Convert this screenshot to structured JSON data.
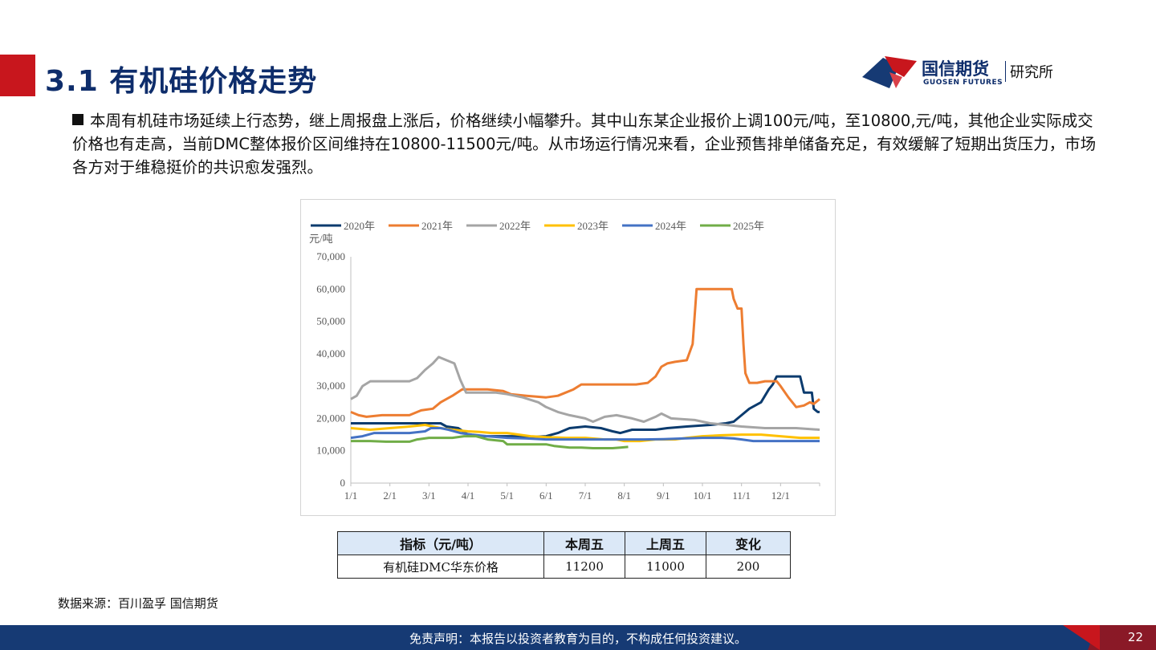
{
  "header": {
    "title": "3.1 有机硅价格走势",
    "logo": {
      "name_cn": "国信期货",
      "name_en": "GUOSEN FUTURES",
      "dept": "研究所"
    }
  },
  "body": {
    "paragraph": "本周有机硅市场延续上行态势，继上周报盘上涨后，价格继续小幅攀升。其中山东某企业报价上调100元/吨，至10800,元/吨，其他企业实际成交价格也有走高，当前DMC整体报价区间维持在10800-11500元/吨。从市场运行情况来看，企业预售排单储备充足，有效缓解了短期出货压力，市场各方对于维稳挺价的共识愈发强烈。"
  },
  "chart_data": {
    "type": "line",
    "title": "",
    "ylabel": "元/吨",
    "xlabel": "",
    "ylim": [
      0,
      70000
    ],
    "xlim": [
      0,
      12
    ],
    "grid": false,
    "legend_position": "top",
    "x_tick_labels": [
      "1/1",
      "2/1",
      "3/1",
      "4/1",
      "5/1",
      "6/1",
      "7/1",
      "8/1",
      "9/1",
      "10/1",
      "11/1",
      "12/1"
    ],
    "y_tick_labels": [
      "0",
      "10,000",
      "20,000",
      "30,000",
      "40,000",
      "50,000",
      "60,000",
      "70,000"
    ],
    "series": [
      {
        "name": "2020年",
        "color": "#0b3b6e",
        "width": 3,
        "points": [
          [
            0,
            18500
          ],
          [
            2.3,
            18500
          ],
          [
            2.45,
            17500
          ],
          [
            2.75,
            17000
          ],
          [
            3.0,
            15000
          ],
          [
            3.4,
            14500
          ],
          [
            4.2,
            14500
          ],
          [
            4.6,
            14200
          ],
          [
            5.0,
            14500
          ],
          [
            5.3,
            15500
          ],
          [
            5.6,
            17000
          ],
          [
            6.0,
            17500
          ],
          [
            6.4,
            17000
          ],
          [
            6.7,
            16000
          ],
          [
            6.9,
            15500
          ],
          [
            7.2,
            16500
          ],
          [
            7.8,
            16500
          ],
          [
            8.1,
            17000
          ],
          [
            8.6,
            17500
          ],
          [
            9.2,
            18000
          ],
          [
            9.6,
            18500
          ],
          [
            9.8,
            19000
          ],
          [
            10.0,
            21000
          ],
          [
            10.2,
            23000
          ],
          [
            10.5,
            25000
          ],
          [
            10.7,
            29000
          ],
          [
            10.8,
            30500
          ],
          [
            10.9,
            33000
          ],
          [
            11.5,
            33000
          ],
          [
            11.6,
            28000
          ],
          [
            11.8,
            28000
          ],
          [
            11.85,
            23000
          ],
          [
            11.95,
            22000
          ],
          [
            12.0,
            22000
          ]
        ]
      },
      {
        "name": "2021年",
        "color": "#ed7d31",
        "width": 3,
        "points": [
          [
            0,
            22000
          ],
          [
            0.2,
            21000
          ],
          [
            0.4,
            20500
          ],
          [
            0.8,
            21000
          ],
          [
            1.5,
            21000
          ],
          [
            1.8,
            22500
          ],
          [
            2.1,
            23000
          ],
          [
            2.3,
            25000
          ],
          [
            2.6,
            27000
          ],
          [
            2.85,
            29000
          ],
          [
            3.5,
            29000
          ],
          [
            3.9,
            28500
          ],
          [
            4.1,
            27500
          ],
          [
            4.5,
            27000
          ],
          [
            5.0,
            26500
          ],
          [
            5.3,
            27000
          ],
          [
            5.5,
            28000
          ],
          [
            5.7,
            29000
          ],
          [
            5.9,
            30500
          ],
          [
            7.3,
            30500
          ],
          [
            7.6,
            31000
          ],
          [
            7.8,
            33000
          ],
          [
            7.95,
            36000
          ],
          [
            8.1,
            37000
          ],
          [
            8.3,
            37500
          ],
          [
            8.6,
            38000
          ],
          [
            8.75,
            43000
          ],
          [
            8.85,
            60000
          ],
          [
            9.75,
            60000
          ],
          [
            9.8,
            57000
          ],
          [
            9.9,
            54000
          ],
          [
            10.0,
            54000
          ],
          [
            10.05,
            43000
          ],
          [
            10.1,
            34000
          ],
          [
            10.2,
            31000
          ],
          [
            10.4,
            31000
          ],
          [
            10.6,
            31500
          ],
          [
            10.9,
            31500
          ],
          [
            11.0,
            30000
          ],
          [
            11.2,
            26500
          ],
          [
            11.4,
            23500
          ],
          [
            11.6,
            24000
          ],
          [
            11.75,
            25000
          ],
          [
            11.85,
            24500
          ],
          [
            12.0,
            26000
          ]
        ]
      },
      {
        "name": "2022年",
        "color": "#a5a5a5",
        "width": 3,
        "points": [
          [
            0,
            26000
          ],
          [
            0.15,
            27000
          ],
          [
            0.3,
            30000
          ],
          [
            0.5,
            31500
          ],
          [
            1.5,
            31500
          ],
          [
            1.7,
            32500
          ],
          [
            1.9,
            35000
          ],
          [
            2.1,
            37000
          ],
          [
            2.25,
            39000
          ],
          [
            2.45,
            38000
          ],
          [
            2.65,
            37000
          ],
          [
            2.8,
            32000
          ],
          [
            2.95,
            28000
          ],
          [
            3.3,
            28000
          ],
          [
            3.7,
            28000
          ],
          [
            4.0,
            27500
          ],
          [
            4.4,
            26500
          ],
          [
            4.8,
            25000
          ],
          [
            5.0,
            23500
          ],
          [
            5.3,
            22000
          ],
          [
            5.6,
            21000
          ],
          [
            6.0,
            20000
          ],
          [
            6.2,
            19000
          ],
          [
            6.5,
            20500
          ],
          [
            6.8,
            21000
          ],
          [
            7.2,
            20000
          ],
          [
            7.5,
            19000
          ],
          [
            7.8,
            20500
          ],
          [
            7.95,
            21500
          ],
          [
            8.2,
            20000
          ],
          [
            8.8,
            19500
          ],
          [
            9.2,
            18500
          ],
          [
            9.6,
            18000
          ],
          [
            10.0,
            17500
          ],
          [
            10.6,
            17000
          ],
          [
            11.4,
            17000
          ],
          [
            12.0,
            16500
          ]
        ]
      },
      {
        "name": "2023年",
        "color": "#ffc000",
        "width": 3,
        "points": [
          [
            0,
            17000
          ],
          [
            0.5,
            16500
          ],
          [
            1.0,
            17000
          ],
          [
            1.5,
            17500
          ],
          [
            1.9,
            18000
          ],
          [
            2.3,
            17000
          ],
          [
            2.6,
            16500
          ],
          [
            3.0,
            16000
          ],
          [
            3.3,
            15800
          ],
          [
            3.6,
            15500
          ],
          [
            4.0,
            15500
          ],
          [
            4.3,
            15000
          ],
          [
            4.6,
            14500
          ],
          [
            5.0,
            14200
          ],
          [
            5.5,
            14000
          ],
          [
            6.0,
            14000
          ],
          [
            6.5,
            13500
          ],
          [
            6.8,
            13500
          ],
          [
            7.0,
            13000
          ],
          [
            7.4,
            13000
          ],
          [
            7.8,
            13500
          ],
          [
            8.3,
            13500
          ],
          [
            8.6,
            14000
          ],
          [
            9.0,
            14500
          ],
          [
            9.5,
            14800
          ],
          [
            10.0,
            15000
          ],
          [
            10.5,
            15000
          ],
          [
            11.0,
            14500
          ],
          [
            11.5,
            14000
          ],
          [
            12.0,
            14000
          ]
        ]
      },
      {
        "name": "2024年",
        "color": "#4472c4",
        "width": 3,
        "points": [
          [
            0,
            14000
          ],
          [
            0.3,
            14500
          ],
          [
            0.6,
            15500
          ],
          [
            1.0,
            15500
          ],
          [
            1.5,
            15500
          ],
          [
            1.9,
            16000
          ],
          [
            2.05,
            17000
          ],
          [
            2.3,
            17000
          ],
          [
            2.5,
            16500
          ],
          [
            2.8,
            15500
          ],
          [
            3.1,
            15000
          ],
          [
            3.5,
            14500
          ],
          [
            4.0,
            14000
          ],
          [
            4.5,
            13800
          ],
          [
            5.0,
            13500
          ],
          [
            5.5,
            13500
          ],
          [
            6.0,
            13500
          ],
          [
            6.5,
            13500
          ],
          [
            7.0,
            13500
          ],
          [
            7.5,
            13500
          ],
          [
            8.0,
            13600
          ],
          [
            8.5,
            13800
          ],
          [
            9.0,
            14000
          ],
          [
            9.5,
            14000
          ],
          [
            9.8,
            13800
          ],
          [
            10.0,
            13500
          ],
          [
            10.3,
            13000
          ],
          [
            10.6,
            13000
          ],
          [
            11.0,
            13000
          ],
          [
            11.5,
            13000
          ],
          [
            12.0,
            13000
          ]
        ]
      },
      {
        "name": "2025年",
        "color": "#70ad47",
        "width": 3,
        "points": [
          [
            0,
            13000
          ],
          [
            0.5,
            13000
          ],
          [
            0.9,
            12800
          ],
          [
            1.5,
            12800
          ],
          [
            1.7,
            13500
          ],
          [
            2.0,
            14000
          ],
          [
            2.6,
            14000
          ],
          [
            2.9,
            14500
          ],
          [
            3.2,
            14500
          ],
          [
            3.5,
            13500
          ],
          [
            3.9,
            13000
          ],
          [
            4.0,
            12000
          ],
          [
            4.5,
            12000
          ],
          [
            5.0,
            12000
          ],
          [
            5.2,
            11500
          ],
          [
            5.6,
            11000
          ],
          [
            5.9,
            11000
          ],
          [
            6.2,
            10800
          ],
          [
            6.7,
            10800
          ],
          [
            6.9,
            11000
          ],
          [
            7.1,
            11200
          ]
        ]
      }
    ]
  },
  "table": {
    "headers": [
      "指标（元/吨）",
      "本周五",
      "上周五",
      "变化"
    ],
    "rows": [
      [
        "有机硅DMC华东价格",
        "11200",
        "11000",
        "200"
      ]
    ]
  },
  "source": "数据来源：百川盈孚  国信期货",
  "footer": {
    "disclaimer": "免责声明：本报告以投资者教育为目的，不构成任何投资建议。",
    "page": "22"
  }
}
